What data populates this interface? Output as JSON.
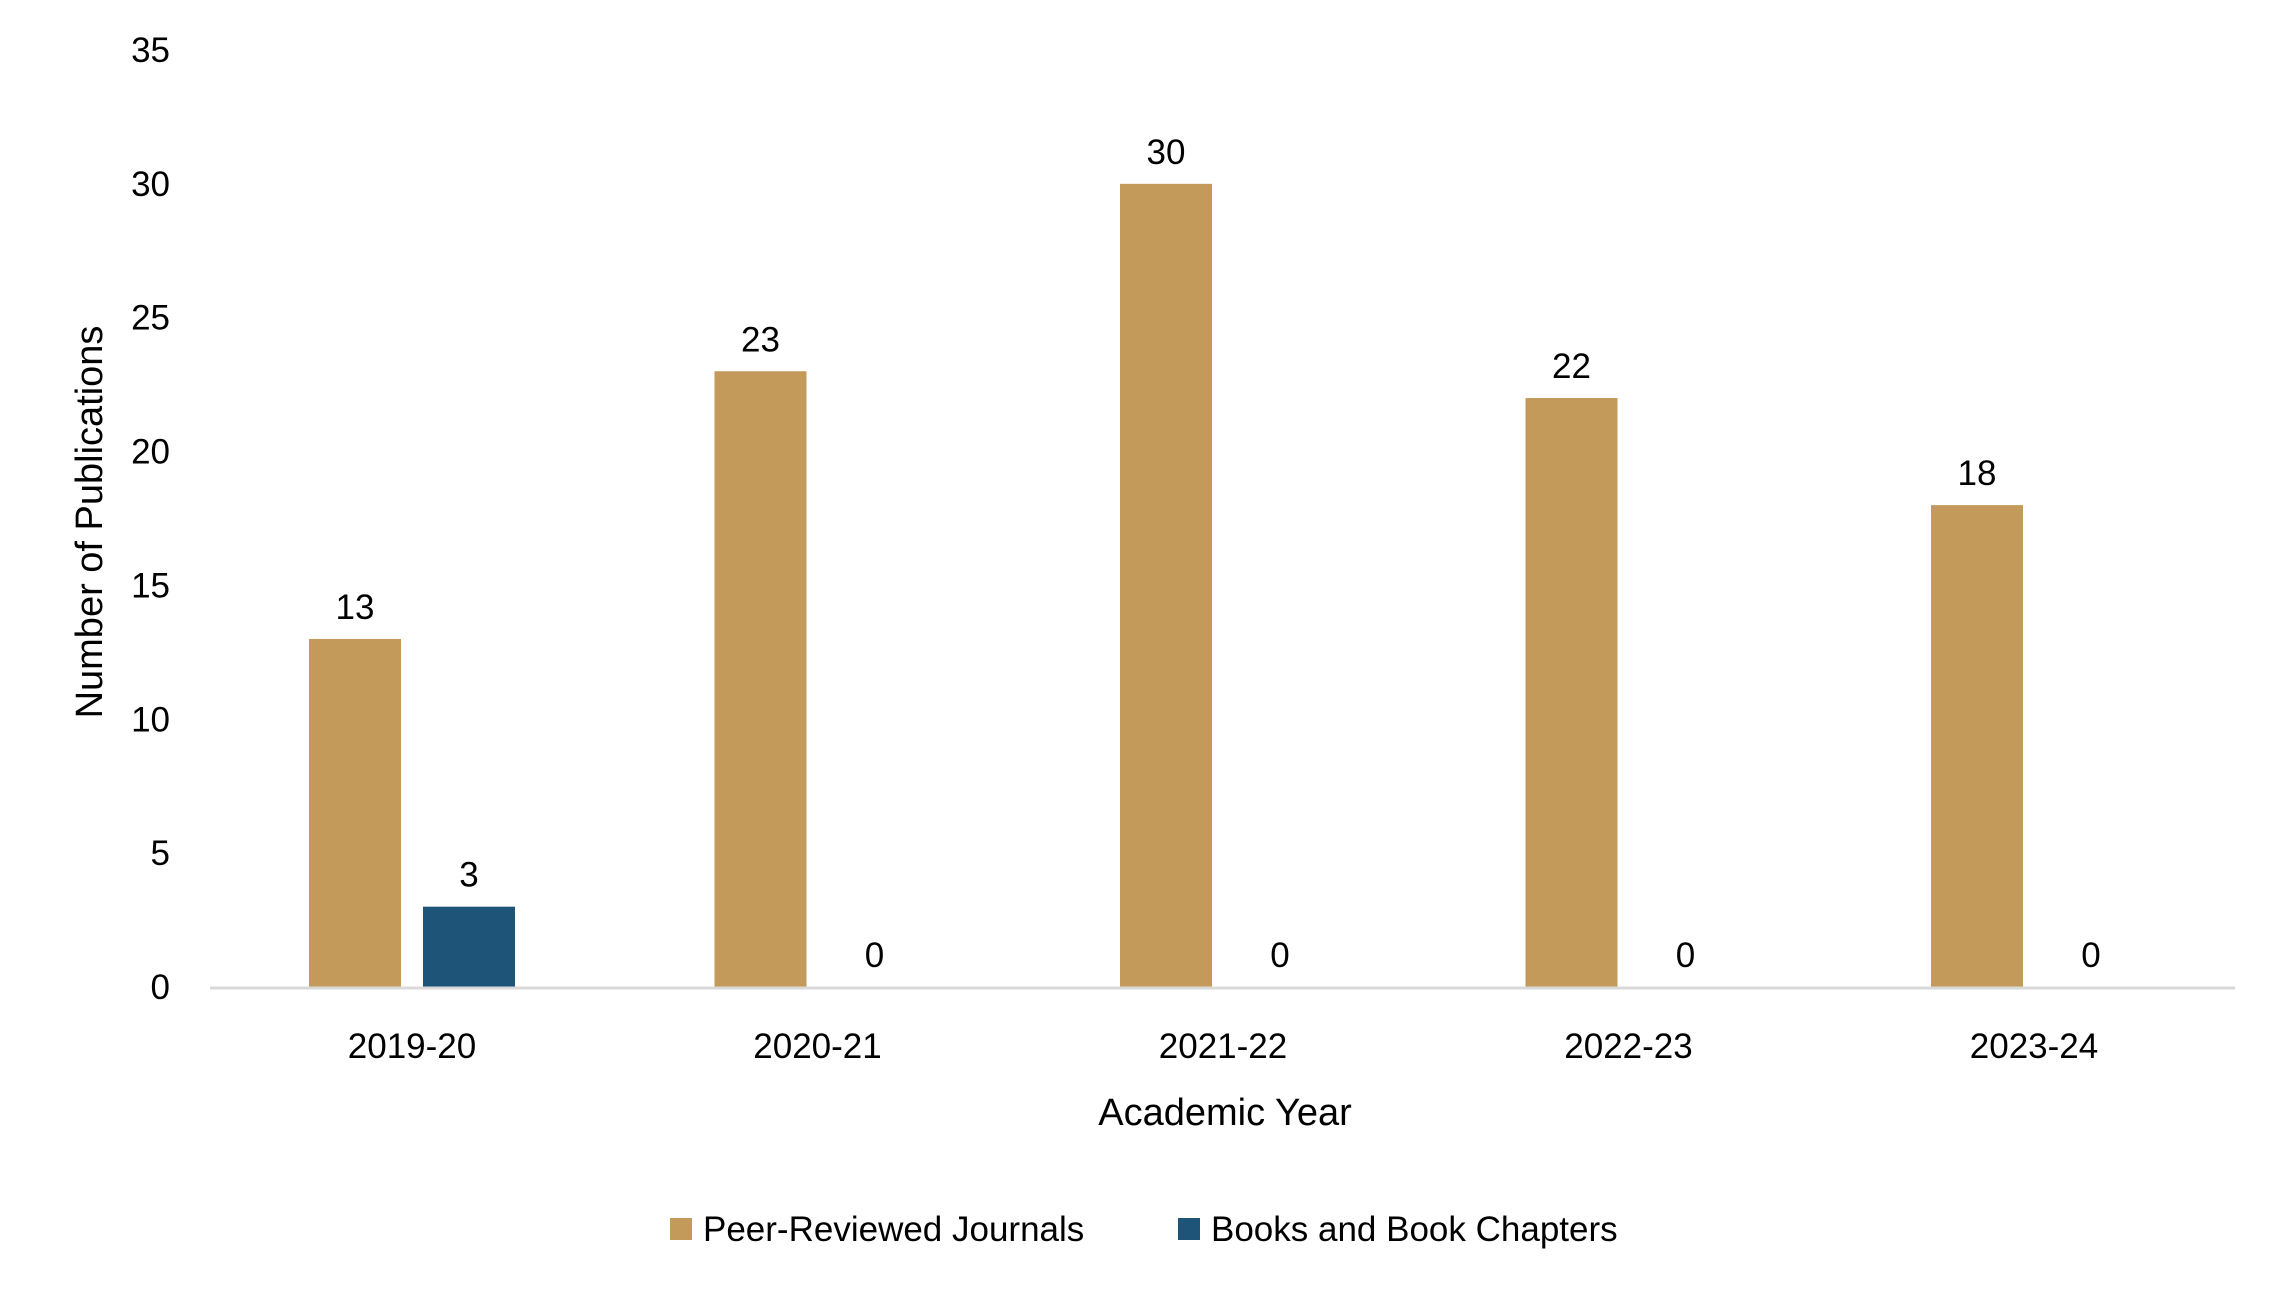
{
  "chart_data": {
    "type": "bar",
    "title": "",
    "xlabel": "Academic Year",
    "ylabel": "Number of Publications",
    "categories": [
      "2019-20",
      "2020-21",
      "2021-22",
      "2022-23",
      "2023-24"
    ],
    "series": [
      {
        "name": "Peer-Reviewed Journals",
        "color": "#C39A5A",
        "values": [
          13,
          23,
          30,
          22,
          18
        ]
      },
      {
        "name": "Books and Book Chapters",
        "color": "#1E5478",
        "values": [
          3,
          0,
          0,
          0,
          0
        ]
      }
    ],
    "ylim": [
      0,
      35
    ],
    "yticks": [
      0,
      5,
      10,
      15,
      20,
      25,
      30,
      35
    ],
    "grid": false,
    "legend_position": "bottom",
    "data_labels": true
  }
}
